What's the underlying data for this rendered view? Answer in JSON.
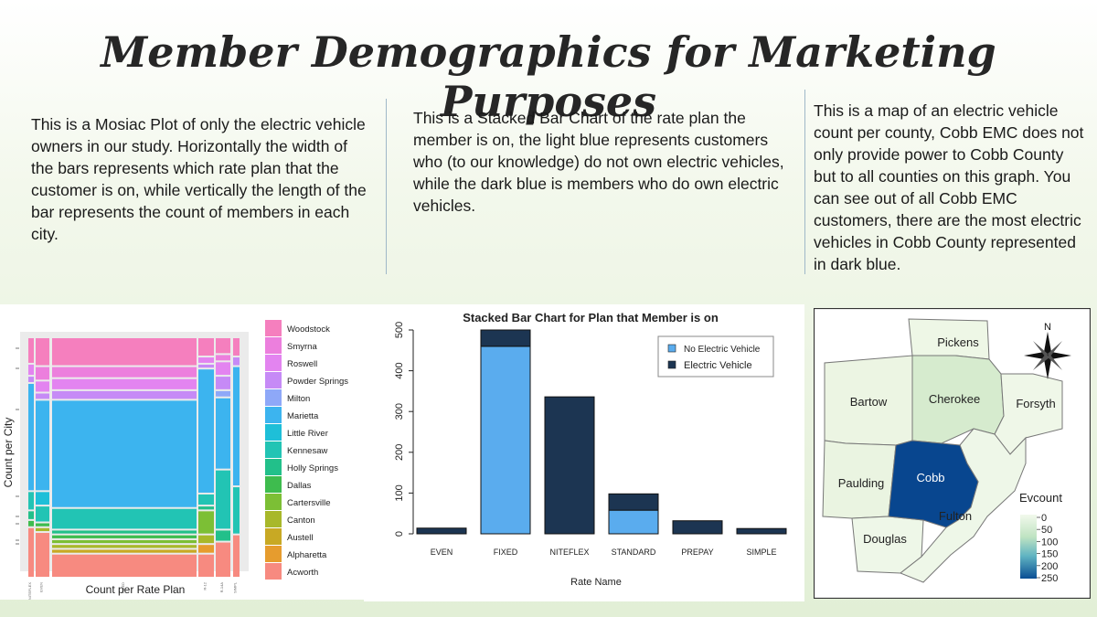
{
  "slide": {
    "title": "Member Demographics for Marketing Purposes",
    "captions": {
      "mosaic": "This is a Mosiac Plot of only the electric vehicle owners in our study. Horizontally the width of the bars represents which rate plan that the customer is on, while vertically the length of the bar represents the count of members in each city.",
      "bar": "This is a Stacked Bar Chart of the rate plan the member is on, the light blue represents customers who (to our knowledge) do not own electric vehicles, while the dark blue is members who do own electric vehicles.",
      "map": "This is a map of an electric vehicle count per county, Cobb EMC does not only provide power to Cobb County but to all counties on this graph. You can see out of all Cobb EMC customers, there are the most electric vehicles in Cobb County represented in dark blue."
    }
  },
  "chart_data": [
    {
      "type": "bar",
      "title": "Stacked Bar Chart for Plan that Member is on",
      "xlabel": "Rate Name",
      "ylabel": "",
      "categories": [
        "EVEN",
        "FIXED",
        "NITEFLEX",
        "STANDARD",
        "PREPAY",
        "SIMPLE"
      ],
      "series": [
        {
          "name": "No Electric Vehicle",
          "color": "#5aacee",
          "values": [
            0,
            460,
            0,
            58,
            0,
            0
          ]
        },
        {
          "name": "Electric Vehicle",
          "color": "#1c3552",
          "values": [
            14,
            40,
            336,
            40,
            32,
            13
          ]
        }
      ],
      "yticks": [
        "0",
        "100",
        "200",
        "300",
        "400",
        "500"
      ],
      "ylim": [
        0,
        500
      ],
      "legend": "top-right",
      "stacked": true
    },
    {
      "type": "mosaic",
      "xlabel": "Count per Rate Plan",
      "ylabel": "Count per City",
      "xticks": [
        "NITEFLEX",
        "EVEN",
        "FIXED",
        "R-12",
        "R-14A",
        "SIMPL"
      ],
      "cities": [
        {
          "name": "Woodstock",
          "color": "#f57fbe"
        },
        {
          "name": "Smyrna",
          "color": "#ec7fdd"
        },
        {
          "name": "Roswell",
          "color": "#e384f0"
        },
        {
          "name": "Powder Springs",
          "color": "#c68af6"
        },
        {
          "name": "Milton",
          "color": "#8ea8f8"
        },
        {
          "name": "Marietta",
          "color": "#3cb4ef"
        },
        {
          "name": "Little River",
          "color": "#1ebfd8"
        },
        {
          "name": "Kennesaw",
          "color": "#22c4b4"
        },
        {
          "name": "Holly Springs",
          "color": "#22c08a"
        },
        {
          "name": "Dallas",
          "color": "#3ebc4e"
        },
        {
          "name": "Cartersville",
          "color": "#7cbf35"
        },
        {
          "name": "Canton",
          "color": "#a8b82a"
        },
        {
          "name": "Austell",
          "color": "#c8a924"
        },
        {
          "name": "Alpharetta",
          "color": "#e69c2e"
        },
        {
          "name": "Acworth",
          "color": "#f78a80"
        }
      ]
    },
    {
      "type": "choropleth",
      "legend_title": "Evcount",
      "legend_ticks": [
        "0",
        "50",
        "100",
        "150",
        "200",
        "250"
      ],
      "counties": [
        {
          "name": "Pickens",
          "evcount": 10
        },
        {
          "name": "Bartow",
          "evcount": 12
        },
        {
          "name": "Cherokee",
          "evcount": 60
        },
        {
          "name": "Forsyth",
          "evcount": 8
        },
        {
          "name": "Paulding",
          "evcount": 15
        },
        {
          "name": "Cobb",
          "evcount": 250
        },
        {
          "name": "Fulton",
          "evcount": 20
        },
        {
          "name": "Douglas",
          "evcount": 10
        }
      ],
      "compass_label": "N"
    }
  ]
}
